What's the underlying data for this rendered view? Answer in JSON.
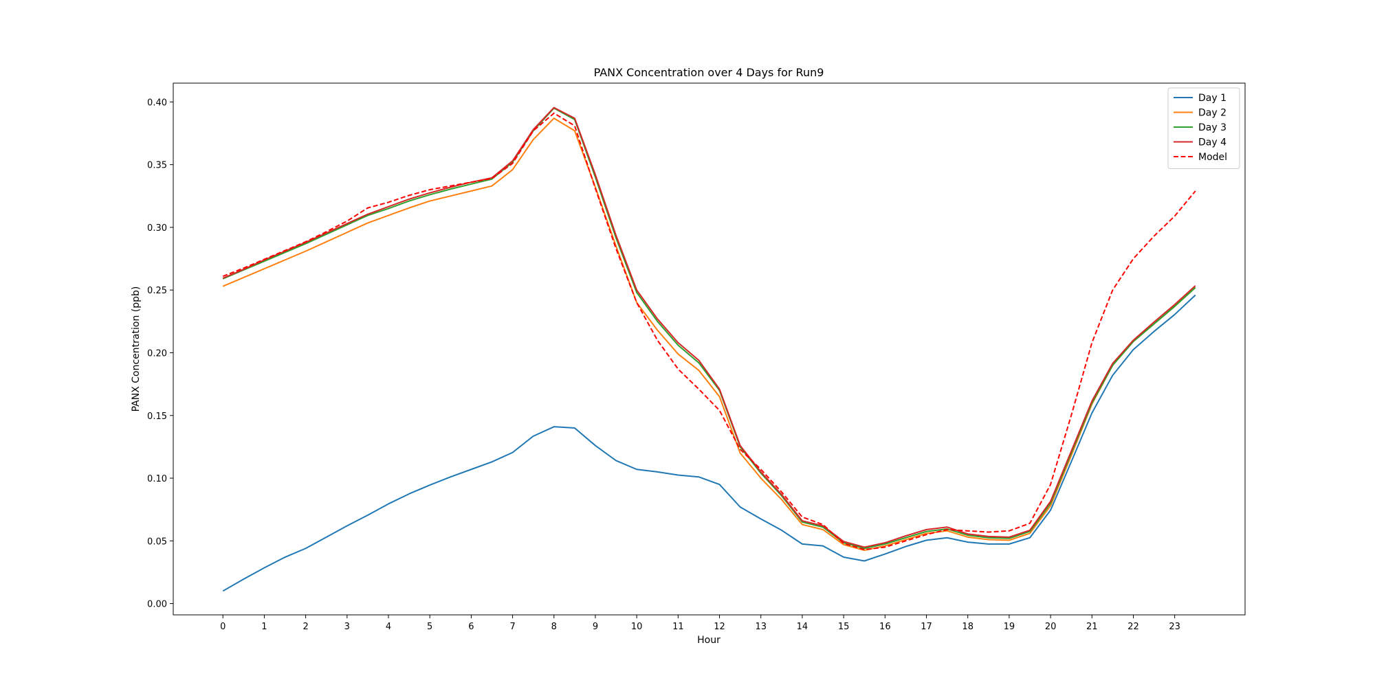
{
  "chart_data": {
    "type": "line",
    "title": "PANX Concentration over 4 Days for Run9",
    "xlabel": "Hour",
    "ylabel": "PANX Concentration (ppb)",
    "xlim": [
      -1.2,
      24.7
    ],
    "ylim": [
      -0.009,
      0.415
    ],
    "xticks": [
      0,
      1,
      2,
      3,
      4,
      5,
      6,
      7,
      8,
      9,
      10,
      11,
      12,
      13,
      14,
      15,
      16,
      17,
      18,
      19,
      20,
      21,
      22,
      23
    ],
    "yticks": [
      0.0,
      0.05,
      0.1,
      0.15,
      0.2,
      0.25,
      0.3,
      0.35,
      0.4
    ],
    "ytick_labels": [
      "0.00",
      "0.05",
      "0.10",
      "0.15",
      "0.20",
      "0.25",
      "0.30",
      "0.35",
      "0.40"
    ],
    "grid": false,
    "legend_position": "top-right",
    "x": [
      0,
      0.5,
      1,
      1.5,
      2,
      2.5,
      3,
      3.5,
      4,
      4.5,
      5,
      5.5,
      6,
      6.5,
      7,
      7.5,
      8,
      8.5,
      9,
      9.5,
      10,
      10.5,
      11,
      11.5,
      12,
      12.5,
      13,
      13.5,
      14,
      14.5,
      15,
      15.5,
      16,
      16.5,
      17,
      17.5,
      18,
      18.5,
      19,
      19.5,
      20,
      20.5,
      21,
      21.5,
      22,
      22.5,
      23,
      23.5
    ],
    "series": [
      {
        "name": "Day 1",
        "color": "#1f77b4",
        "dash": "solid",
        "values": [
          0.01,
          0.0195,
          0.0285,
          0.037,
          0.044,
          0.053,
          0.062,
          0.0705,
          0.0795,
          0.0875,
          0.0945,
          0.101,
          0.107,
          0.113,
          0.1205,
          0.1335,
          0.141,
          0.14,
          0.126,
          0.114,
          0.107,
          0.105,
          0.1025,
          0.101,
          0.095,
          0.077,
          0.0675,
          0.0585,
          0.0475,
          0.046,
          0.037,
          0.034,
          0.0395,
          0.0455,
          0.0505,
          0.0525,
          0.049,
          0.0475,
          0.0475,
          0.0525,
          0.0745,
          0.113,
          0.152,
          0.182,
          0.2025,
          0.217,
          0.2305,
          0.246
        ]
      },
      {
        "name": "Day 2",
        "color": "#ff7f0e",
        "dash": "solid",
        "values": [
          0.253,
          0.26,
          0.267,
          0.274,
          0.281,
          0.2885,
          0.296,
          0.3035,
          0.3095,
          0.3155,
          0.321,
          0.325,
          0.329,
          0.333,
          0.346,
          0.37,
          0.387,
          0.377,
          0.332,
          0.285,
          0.24,
          0.218,
          0.199,
          0.186,
          0.165,
          0.12,
          0.1,
          0.083,
          0.063,
          0.059,
          0.047,
          0.0425,
          0.046,
          0.051,
          0.056,
          0.058,
          0.053,
          0.051,
          0.0505,
          0.056,
          0.078,
          0.118,
          0.159,
          0.19,
          0.209,
          0.223,
          0.237,
          0.252
        ]
      },
      {
        "name": "Day 3",
        "color": "#2ca02c",
        "dash": "solid",
        "values": [
          0.259,
          0.266,
          0.273,
          0.28,
          0.287,
          0.2945,
          0.302,
          0.3095,
          0.315,
          0.321,
          0.326,
          0.3305,
          0.3345,
          0.3385,
          0.352,
          0.377,
          0.395,
          0.386,
          0.34,
          0.2915,
          0.248,
          0.225,
          0.206,
          0.192,
          0.17,
          0.125,
          0.104,
          0.086,
          0.065,
          0.061,
          0.0485,
          0.044,
          0.0475,
          0.0525,
          0.0575,
          0.0595,
          0.0545,
          0.0525,
          0.052,
          0.0575,
          0.08,
          0.12,
          0.16,
          0.19,
          0.209,
          0.223,
          0.237,
          0.252
        ]
      },
      {
        "name": "Day 4",
        "color": "#d62728",
        "dash": "solid",
        "values": [
          0.2595,
          0.2665,
          0.274,
          0.281,
          0.288,
          0.2955,
          0.303,
          0.3105,
          0.3165,
          0.3225,
          0.3275,
          0.332,
          0.336,
          0.3395,
          0.353,
          0.378,
          0.3955,
          0.387,
          0.342,
          0.2935,
          0.25,
          0.227,
          0.208,
          0.194,
          0.171,
          0.126,
          0.105,
          0.087,
          0.066,
          0.062,
          0.0495,
          0.045,
          0.0485,
          0.054,
          0.059,
          0.061,
          0.0555,
          0.0535,
          0.053,
          0.0585,
          0.0815,
          0.1215,
          0.1615,
          0.1915,
          0.21,
          0.2245,
          0.2385,
          0.2535
        ]
      },
      {
        "name": "Model",
        "color": "#ff0000",
        "dash": "dashed",
        "values": [
          0.261,
          0.2675,
          0.2745,
          0.2815,
          0.2885,
          0.2965,
          0.305,
          0.3155,
          0.32,
          0.3255,
          0.33,
          0.333,
          0.336,
          0.339,
          0.351,
          0.377,
          0.391,
          0.381,
          0.331,
          0.283,
          0.24,
          0.21,
          0.187,
          0.171,
          0.154,
          0.123,
          0.107,
          0.089,
          0.069,
          0.063,
          0.048,
          0.043,
          0.045,
          0.05,
          0.055,
          0.059,
          0.058,
          0.057,
          0.058,
          0.064,
          0.095,
          0.15,
          0.208,
          0.25,
          0.275,
          0.293,
          0.309,
          0.329
        ]
      }
    ]
  }
}
